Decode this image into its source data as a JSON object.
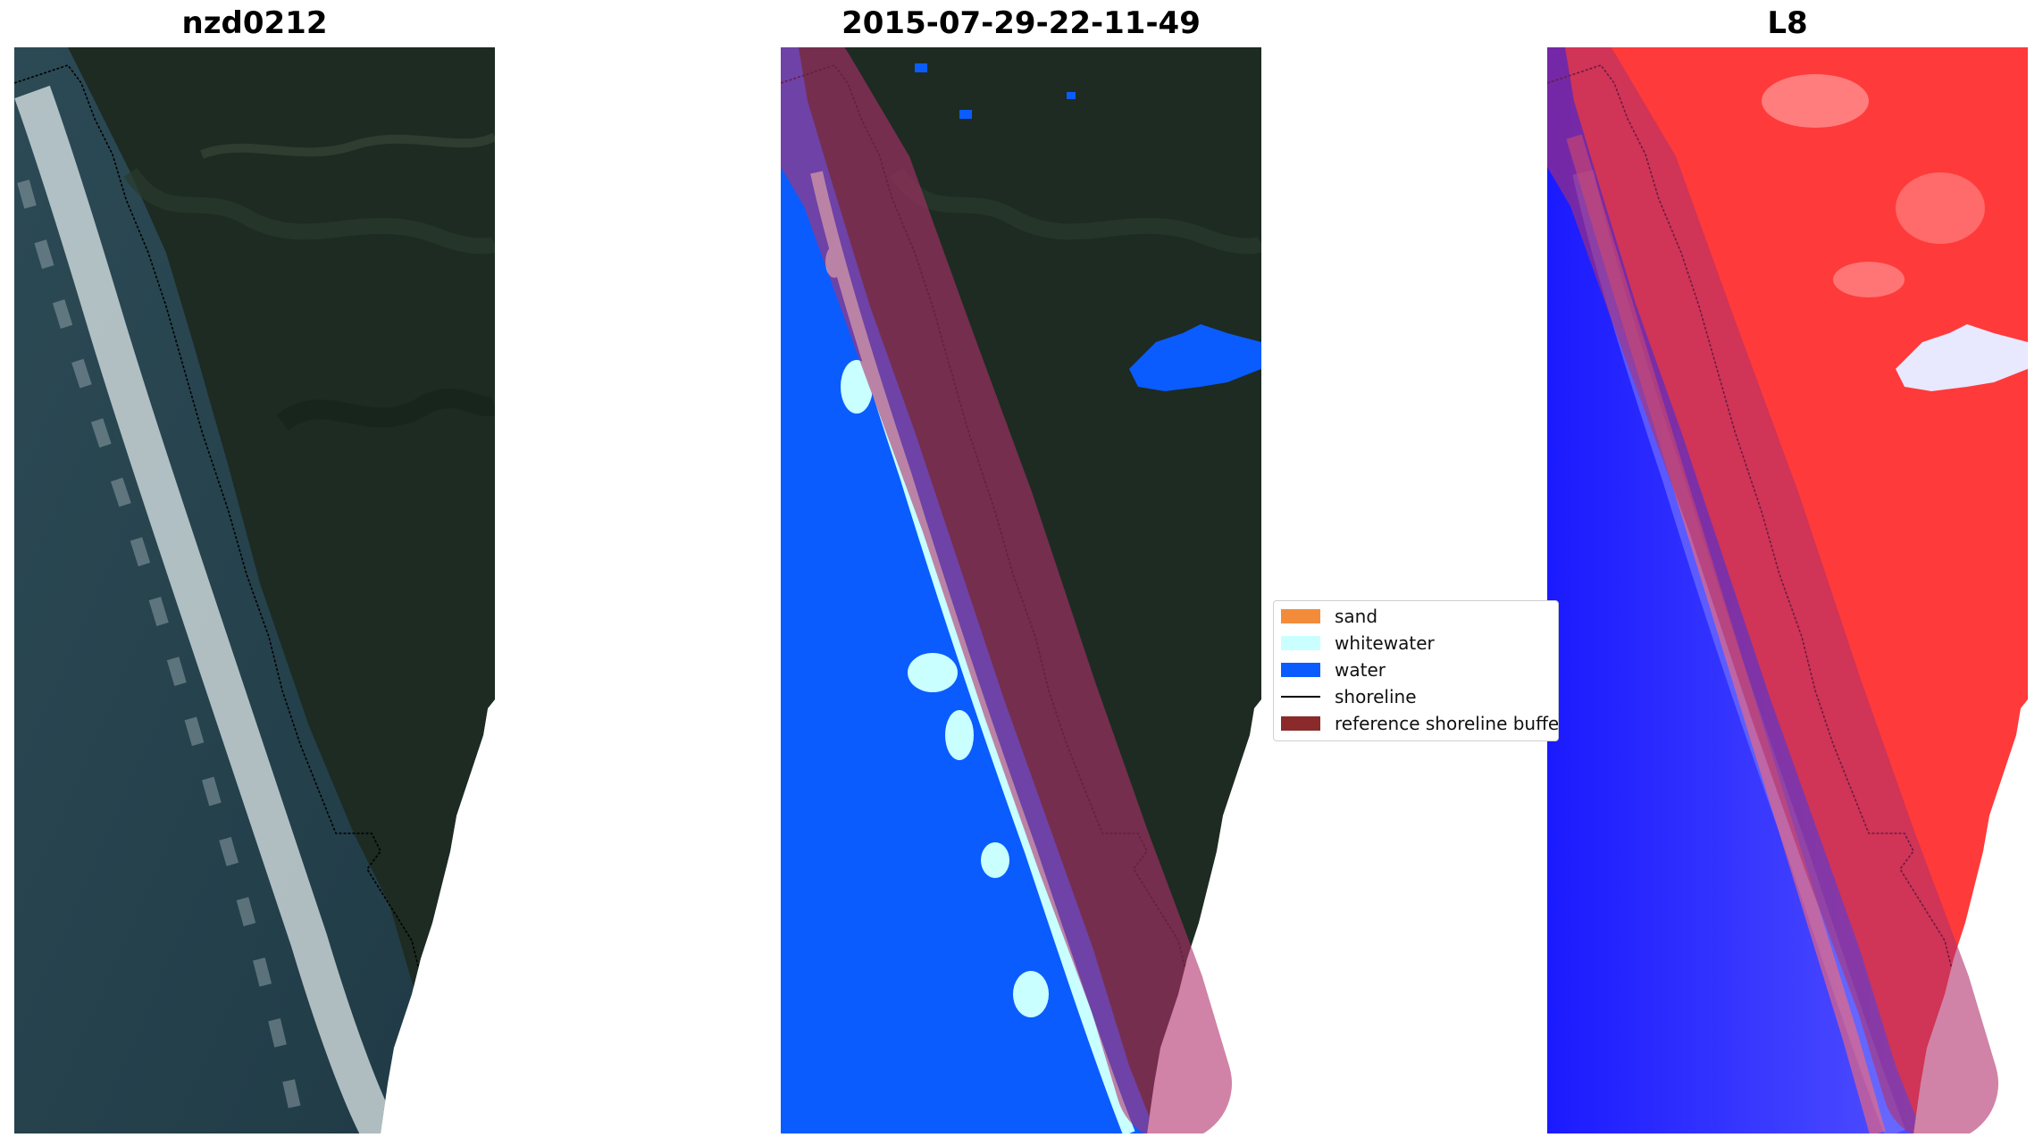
{
  "panels": [
    {
      "title": "nzd0212"
    },
    {
      "title": "2015-07-29-22-11-49"
    },
    {
      "title": "L8"
    }
  ],
  "legend": [
    {
      "label": "sand",
      "color": "#f28c3a",
      "kind": "patch"
    },
    {
      "label": "whitewater",
      "color": "#c9ffff",
      "kind": "patch"
    },
    {
      "label": "water",
      "color": "#0a5cff",
      "kind": "patch"
    },
    {
      "label": "shoreline",
      "color": "#000000",
      "kind": "line"
    },
    {
      "label": "reference shoreline buffer",
      "color": "#8b2a2a",
      "kind": "patch"
    }
  ],
  "colors": {
    "land": "#1d2b22",
    "ocean": "#23404a",
    "foam": "#dfe8ea",
    "water_class": "#0a5cff",
    "whitewater_class": "#c9ffff",
    "buffer": "#b0306a",
    "index_land": "#ff3030",
    "index_water": "#1010ff"
  }
}
